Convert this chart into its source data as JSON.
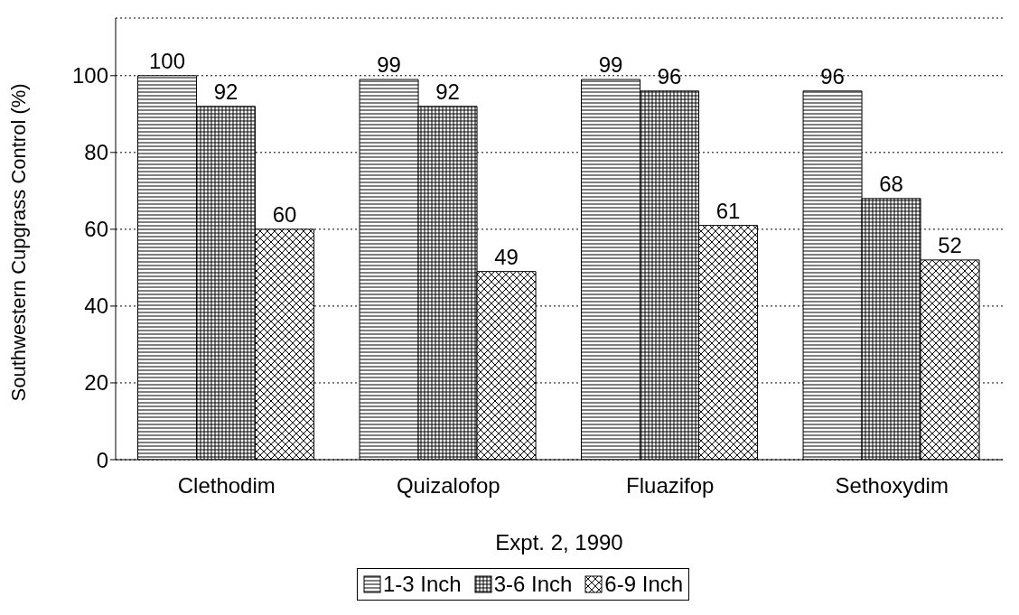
{
  "chart_data": {
    "type": "bar",
    "xlabel": "Expt. 2, 1990",
    "ylabel": "Southwestern Cupgrass Control (%)",
    "categories": [
      "Clethodim",
      "Quizalofop",
      "Fluazifop",
      "Sethoxydim"
    ],
    "series": [
      {
        "name": "1-3 Inch",
        "color": "#000000",
        "values": [
          100,
          99,
          99,
          96
        ]
      },
      {
        "name": "3-6 Inch",
        "color": "#000000",
        "values": [
          92,
          92,
          96,
          68
        ]
      },
      {
        "name": "6-9 Inch",
        "color": "#000000",
        "values": [
          60,
          49,
          61,
          52
        ]
      }
    ],
    "ylim": [
      0,
      115
    ],
    "yticks": [
      0,
      20,
      40,
      60,
      80,
      100
    ],
    "grid": "y",
    "legend": "bottom",
    "data_labels": true
  }
}
